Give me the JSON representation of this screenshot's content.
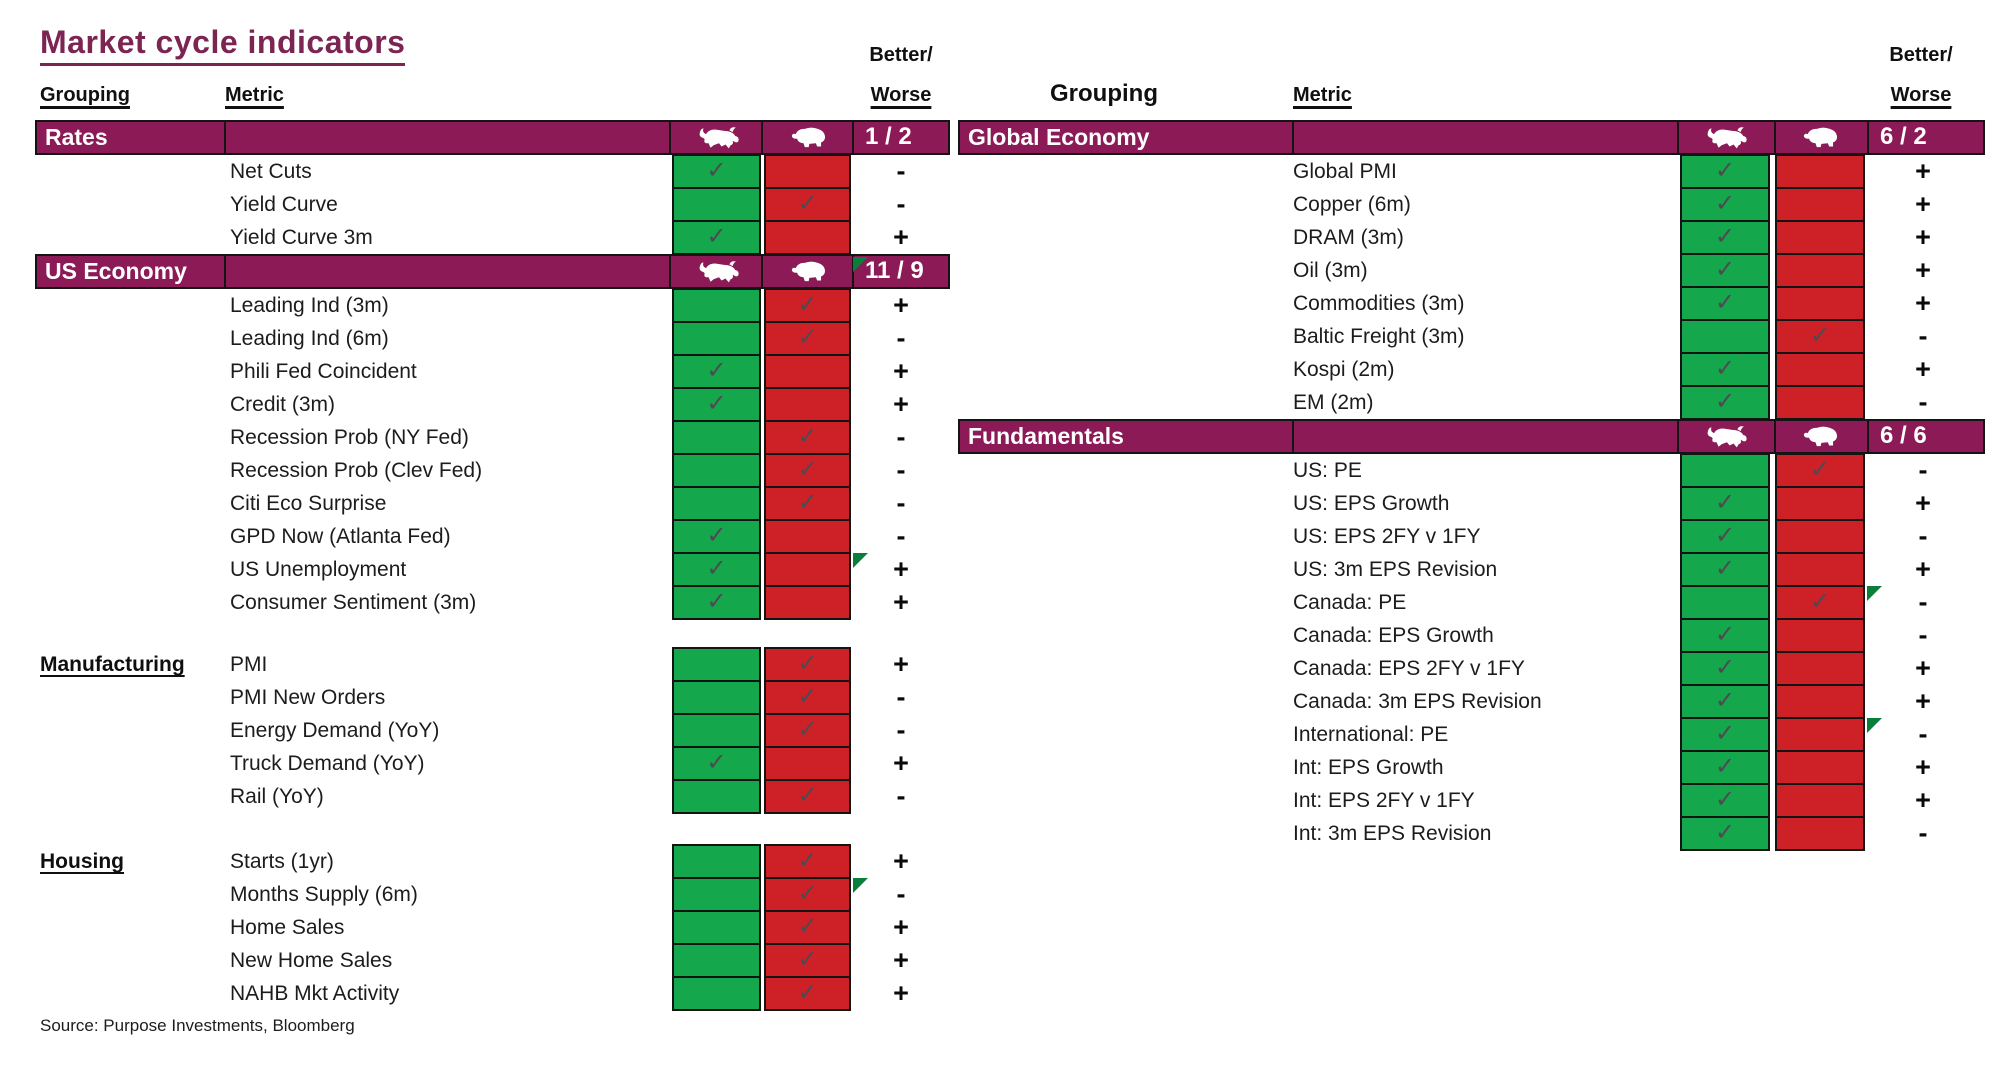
{
  "colors": {
    "magenta": "#8B1A56",
    "green": "#15A74C",
    "red": "#CE2127",
    "check_gray": "#4E4A52",
    "flag_green": "#0C7E3C",
    "title_plum": "#7C2452"
  },
  "icons": {
    "bull": "bull-icon",
    "bear": "bear-icon",
    "check": "check-icon",
    "flag": "new-signal-triangle"
  },
  "chart_data": {
    "type": "table",
    "title": "Market cycle indicators",
    "source": "Source: Purpose Investments, Bloomberg",
    "check_glyph": "✓",
    "column_headers": {
      "left_grouping": "Grouping",
      "left_metric": "Metric",
      "right_grouping": "Grouping",
      "right_metric": "Metric",
      "better_line": "Better/",
      "worse_line": "Worse"
    },
    "left_panel": {
      "sections": [
        {
          "key": "rates",
          "label": "Rates",
          "header_style": "bar",
          "score": "1 / 2",
          "score_flag": false,
          "rows": [
            {
              "metric": "Net Cuts",
              "signal": "bull",
              "better_worse": "-",
              "flag": false
            },
            {
              "metric": "Yield Curve",
              "signal": "bear",
              "better_worse": "-",
              "flag": false
            },
            {
              "metric": "Yield Curve 3m",
              "signal": "bull",
              "better_worse": "+",
              "flag": false
            }
          ]
        },
        {
          "key": "us-economy",
          "label": "US Economy",
          "header_style": "bar",
          "score": "11 / 9",
          "score_flag": true,
          "rows": [
            {
              "metric": "Leading Ind (3m)",
              "signal": "bear",
              "better_worse": "+",
              "flag": false
            },
            {
              "metric": "Leading Ind (6m)",
              "signal": "bear",
              "better_worse": "-",
              "flag": false
            },
            {
              "metric": "Phili Fed Coincident",
              "signal": "bull",
              "better_worse": "+",
              "flag": false
            },
            {
              "metric": "Credit (3m)",
              "signal": "bull",
              "better_worse": "+",
              "flag": false
            },
            {
              "metric": "Recession Prob (NY Fed)",
              "signal": "bear",
              "better_worse": "-",
              "flag": false
            },
            {
              "metric": "Recession Prob (Clev Fed)",
              "signal": "bear",
              "better_worse": "-",
              "flag": false
            },
            {
              "metric": "Citi Eco Surprise",
              "signal": "bear",
              "better_worse": "-",
              "flag": false
            },
            {
              "metric": "GPD Now (Atlanta Fed)",
              "signal": "bull",
              "better_worse": "-",
              "flag": false
            },
            {
              "metric": "US Unemployment",
              "signal": "bull",
              "better_worse": "+",
              "flag": true
            },
            {
              "metric": "Consumer Sentiment (3m)",
              "signal": "bull",
              "better_worse": "+",
              "flag": false
            }
          ]
        },
        {
          "key": "manufacturing",
          "label": "Manufacturing",
          "header_style": "inline-label",
          "rows": [
            {
              "metric": "PMI",
              "signal": "bear",
              "better_worse": "+",
              "flag": false
            },
            {
              "metric": "PMI New Orders",
              "signal": "bear",
              "better_worse": "-",
              "flag": false
            },
            {
              "metric": "Energy Demand (YoY)",
              "signal": "bear",
              "better_worse": "-",
              "flag": false
            },
            {
              "metric": "Truck Demand (YoY)",
              "signal": "bull",
              "better_worse": "+",
              "flag": false
            },
            {
              "metric": "Rail (YoY)",
              "signal": "bear",
              "better_worse": "-",
              "flag": false
            }
          ]
        },
        {
          "key": "housing",
          "label": "Housing",
          "header_style": "inline-label",
          "rows": [
            {
              "metric": "Starts (1yr)",
              "signal": "bear",
              "better_worse": "+",
              "flag": false
            },
            {
              "metric": "Months Supply (6m)",
              "signal": "bear",
              "better_worse": "-",
              "flag": true
            },
            {
              "metric": "Home Sales",
              "signal": "bear",
              "better_worse": "+",
              "flag": false
            },
            {
              "metric": "New Home Sales",
              "signal": "bear",
              "better_worse": "+",
              "flag": false
            },
            {
              "metric": "NAHB Mkt Activity",
              "signal": "bear",
              "better_worse": "+",
              "flag": false
            }
          ]
        }
      ]
    },
    "right_panel": {
      "sections": [
        {
          "key": "global-economy",
          "label": "Global Economy",
          "header_style": "bar",
          "score": "6 / 2",
          "score_flag": false,
          "rows": [
            {
              "metric": "Global PMI",
              "signal": "bull",
              "better_worse": "+",
              "flag": false
            },
            {
              "metric": "Copper (6m)",
              "signal": "bull",
              "better_worse": "+",
              "flag": false
            },
            {
              "metric": "DRAM (3m)",
              "signal": "bull",
              "better_worse": "+",
              "flag": false
            },
            {
              "metric": "Oil (3m)",
              "signal": "bull",
              "better_worse": "+",
              "flag": false
            },
            {
              "metric": "Commodities (3m)",
              "signal": "bull",
              "better_worse": "+",
              "flag": false
            },
            {
              "metric": "Baltic Freight (3m)",
              "signal": "bear",
              "better_worse": "-",
              "flag": false
            },
            {
              "metric": "Kospi (2m)",
              "signal": "bull",
              "better_worse": "+",
              "flag": false
            },
            {
              "metric": "EM (2m)",
              "signal": "bull",
              "better_worse": "-",
              "flag": false
            }
          ]
        },
        {
          "key": "fundamentals",
          "label": "Fundamentals",
          "header_style": "bar",
          "score": "6 / 6",
          "score_flag": false,
          "rows": [
            {
              "metric": "US: PE",
              "signal": "bear",
              "better_worse": "-",
              "flag": false
            },
            {
              "metric": "US: EPS Growth",
              "signal": "bull",
              "better_worse": "+",
              "flag": false
            },
            {
              "metric": "US: EPS 2FY v 1FY",
              "signal": "bull",
              "better_worse": "-",
              "flag": false
            },
            {
              "metric": "US: 3m EPS Revision",
              "signal": "bull",
              "better_worse": "+",
              "flag": false
            },
            {
              "metric": "Canada: PE",
              "signal": "bear",
              "better_worse": "-",
              "flag": true
            },
            {
              "metric": "Canada: EPS Growth",
              "signal": "bull",
              "better_worse": "-",
              "flag": false
            },
            {
              "metric": "Canada: EPS 2FY v 1FY",
              "signal": "bull",
              "better_worse": "+",
              "flag": false
            },
            {
              "metric": "Canada: 3m EPS Revision",
              "signal": "bull",
              "better_worse": "+",
              "flag": false
            },
            {
              "metric": "International: PE",
              "signal": "bull",
              "better_worse": "-",
              "flag": true
            },
            {
              "metric": "Int: EPS Growth",
              "signal": "bull",
              "better_worse": "+",
              "flag": false
            },
            {
              "metric": "Int: EPS 2FY v 1FY",
              "signal": "bull",
              "better_worse": "+",
              "flag": false
            },
            {
              "metric": "Int: 3m EPS Revision",
              "signal": "bull",
              "better_worse": "-",
              "flag": false
            }
          ]
        }
      ]
    }
  }
}
